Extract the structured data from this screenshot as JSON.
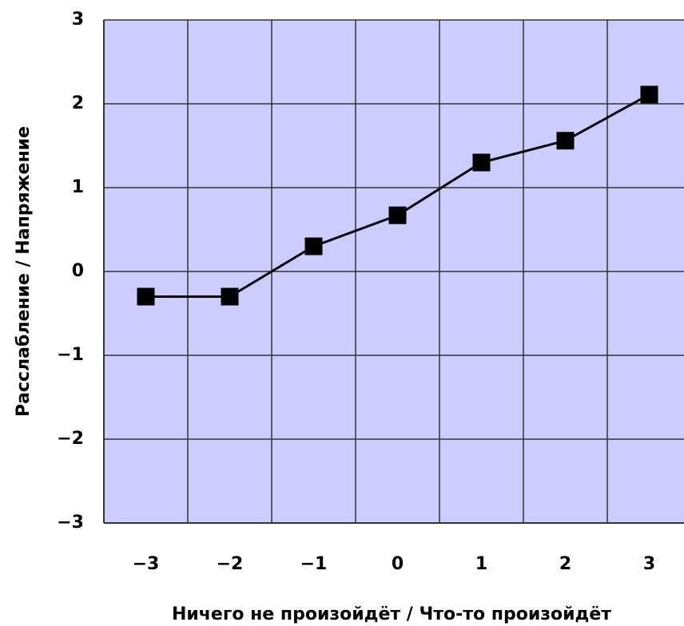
{
  "chart_data": {
    "type": "line",
    "x_label": "Ничего не произойдёт / Что-то произойдёт",
    "y_label": "Расслабление / Напряжение",
    "categories": [
      "−3",
      "−2",
      "−1",
      "0",
      "1",
      "2",
      "3"
    ],
    "series": [
      {
        "color": "#000000",
        "values": [
          -0.3,
          -0.3,
          0.3,
          0.67,
          1.3,
          1.56,
          2.11
        ]
      }
    ],
    "ylim": [
      -3,
      3
    ],
    "yticks": [
      {
        "value": -3,
        "label": "−3"
      },
      {
        "value": -2,
        "label": "−2"
      },
      {
        "value": -1,
        "label": "−1"
      },
      0,
      1,
      2,
      3
    ],
    "grid": true,
    "background": "#ccccff"
  }
}
